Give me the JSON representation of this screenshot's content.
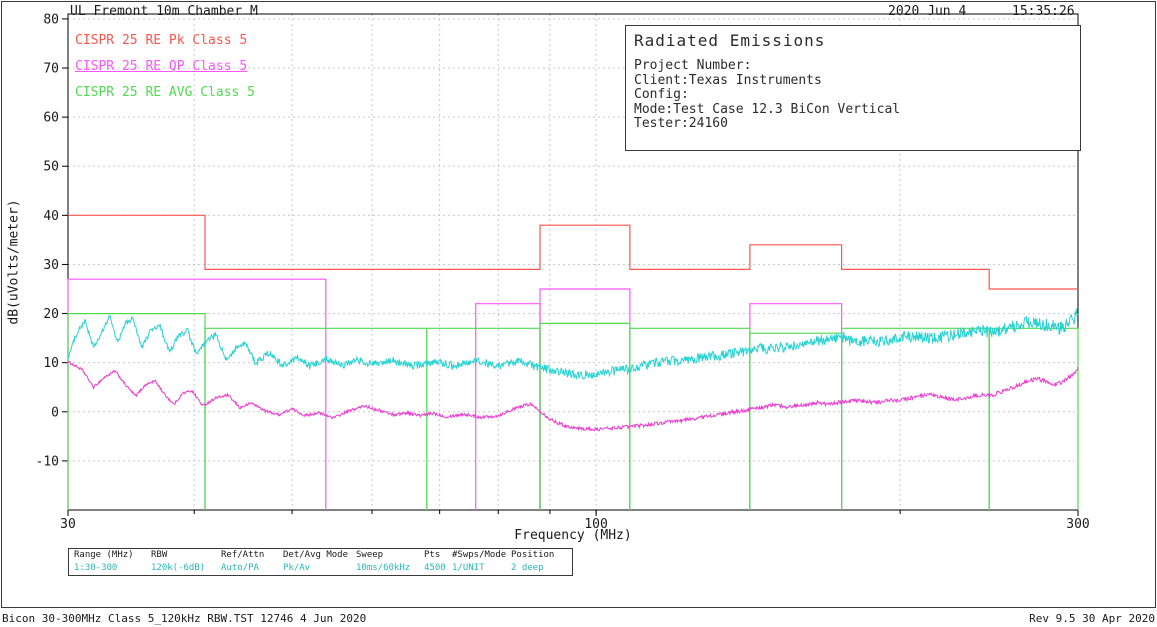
{
  "header": {
    "title": "UL Fremont 10m Chamber M",
    "date": "2020 Jun 4",
    "time": "15:35:26"
  },
  "legend": [
    {
      "label": "CISPR 25 RE Pk Class 5",
      "color": "#ff554d",
      "underline": false
    },
    {
      "label": "CISPR 25 RE QP Class 5",
      "color": "#ff55ff",
      "underline": true
    },
    {
      "label": "CISPR 25 RE AVG Class 5",
      "color": "#4fdc4f",
      "underline": false
    }
  ],
  "info_box": {
    "title": "Radiated Emissions",
    "lines": [
      "Project Number:",
      "Client:Texas Instruments",
      "Config:",
      "Mode:Test Case 12.3 BiCon Vertical",
      "Tester:24160"
    ]
  },
  "settings_table": {
    "columns": [
      {
        "header": "Range (MHz)",
        "value": "1:30-300"
      },
      {
        "header": "RBW",
        "value": "120k(-6dB)"
      },
      {
        "header": "Ref/Attn",
        "value": "Auto/PA"
      },
      {
        "header": "Det/Avg Mode",
        "value": "Pk/Av"
      },
      {
        "header": "Sweep",
        "value": "10ms/60kHz"
      },
      {
        "header": "Pts",
        "value": "4500"
      },
      {
        "header": "#Swps/Mode",
        "value": "1/UNIT"
      },
      {
        "header": "Position",
        "value": "2 deep"
      }
    ]
  },
  "footer": {
    "left": "Bicon 30-300MHz Class 5_120kHz RBW.TST 12746  4 Jun 2020",
    "right": "Rev 9.5 30 Apr 2020"
  },
  "chart_data": {
    "type": "line",
    "title": "Radiated Emissions",
    "xlabel": "Frequency (MHz)",
    "ylabel": "dB(uVolts/meter)",
    "xscale": "log",
    "xlim": [
      30,
      300
    ],
    "ylim": [
      -20,
      81
    ],
    "xticks_labeled": [
      30,
      100,
      300
    ],
    "xgrid": [
      40,
      50,
      60,
      70,
      80,
      90,
      100,
      200
    ],
    "yticks": [
      -10,
      0,
      10,
      20,
      30,
      40,
      50,
      60,
      70,
      80
    ],
    "grid_color": "#c9c9c9",
    "limits": [
      {
        "name": "CISPR 25 RE Pk Class 5",
        "color": "#ff554d",
        "style": "step",
        "points": [
          [
            30,
            40
          ],
          [
            41,
            40
          ],
          [
            41,
            29
          ],
          [
            88,
            29
          ],
          [
            88,
            38
          ],
          [
            108,
            38
          ],
          [
            108,
            29
          ],
          [
            142,
            29
          ],
          [
            142,
            34
          ],
          [
            175,
            34
          ],
          [
            175,
            29
          ],
          [
            245,
            29
          ],
          [
            245,
            25
          ],
          [
            300,
            25
          ]
        ]
      },
      {
        "name": "CISPR 25 RE QP Class 5",
        "color": "#ff55ff",
        "style": "bands",
        "bands": [
          [
            30,
            54,
            27
          ],
          [
            76,
            88,
            22
          ],
          [
            88,
            108,
            25
          ],
          [
            142,
            175,
            22
          ]
        ]
      },
      {
        "name": "CISPR 25 RE AVG Class 5",
        "color": "#4fdc4f",
        "style": "bands",
        "bands": [
          [
            30,
            41,
            20
          ],
          [
            41,
            68,
            17
          ],
          [
            68,
            88,
            17
          ],
          [
            88,
            108,
            18
          ],
          [
            108,
            142,
            17
          ],
          [
            142,
            175,
            16
          ],
          [
            175,
            245,
            17
          ],
          [
            245,
            300,
            17
          ]
        ]
      }
    ],
    "traces": [
      {
        "name": "magenta",
        "color": "#ee3bd0",
        "noise_db": 0.4,
        "noise_ramp": [
          0.6,
          0.5
        ],
        "points": [
          [
            30,
            10.2
          ],
          [
            31,
            8.5
          ],
          [
            31.8,
            5
          ],
          [
            32.6,
            7
          ],
          [
            33.4,
            8.3
          ],
          [
            34.2,
            5.5
          ],
          [
            35,
            3.2
          ],
          [
            35.8,
            5.5
          ],
          [
            36.6,
            6.3
          ],
          [
            37.4,
            3.5
          ],
          [
            38.2,
            1.5
          ],
          [
            39,
            3.8
          ],
          [
            39.8,
            4.3
          ],
          [
            40.8,
            1.2
          ],
          [
            42,
            2.8
          ],
          [
            43.2,
            3.4
          ],
          [
            44.4,
            0.8
          ],
          [
            45.6,
            1.8
          ],
          [
            47,
            0.2
          ],
          [
            48.5,
            -0.6
          ],
          [
            50,
            0.6
          ],
          [
            51.5,
            -0.8
          ],
          [
            53,
            -0.2
          ],
          [
            55,
            -1.2
          ],
          [
            57,
            0.2
          ],
          [
            59,
            1.2
          ],
          [
            61,
            0.3
          ],
          [
            63,
            -0.6
          ],
          [
            65,
            -0.2
          ],
          [
            67,
            -0.8
          ],
          [
            69,
            -0.3
          ],
          [
            71,
            -1.0
          ],
          [
            74,
            -0.5
          ],
          [
            77,
            -1.1
          ],
          [
            80,
            -0.8
          ],
          [
            82,
            0.2
          ],
          [
            84,
            1.0
          ],
          [
            86,
            1.6
          ],
          [
            88,
            0.2
          ],
          [
            90,
            -1.5
          ],
          [
            93,
            -2.8
          ],
          [
            96,
            -3.4
          ],
          [
            100,
            -3.6
          ],
          [
            104,
            -3.3
          ],
          [
            108,
            -3.0
          ],
          [
            112,
            -2.7
          ],
          [
            116,
            -2.3
          ],
          [
            120,
            -1.9
          ],
          [
            125,
            -1.4
          ],
          [
            130,
            -0.8
          ],
          [
            135,
            -0.3
          ],
          [
            140,
            0.3
          ],
          [
            145,
            0.8
          ],
          [
            150,
            1.4
          ],
          [
            155,
            1.0
          ],
          [
            160,
            1.4
          ],
          [
            165,
            1.9
          ],
          [
            170,
            1.5
          ],
          [
            175,
            2.0
          ],
          [
            180,
            2.4
          ],
          [
            185,
            2.0
          ],
          [
            190,
            1.9
          ],
          [
            195,
            2.3
          ],
          [
            200,
            2.4
          ],
          [
            205,
            2.8
          ],
          [
            210,
            3.2
          ],
          [
            215,
            3.4
          ],
          [
            220,
            2.9
          ],
          [
            225,
            2.5
          ],
          [
            230,
            2.6
          ],
          [
            235,
            3.0
          ],
          [
            240,
            3.4
          ],
          [
            245,
            3.3
          ],
          [
            250,
            3.8
          ],
          [
            255,
            4.4
          ],
          [
            260,
            5.2
          ],
          [
            265,
            5.9
          ],
          [
            270,
            6.5
          ],
          [
            275,
            6.6
          ],
          [
            280,
            6.1
          ],
          [
            285,
            5.6
          ],
          [
            290,
            6.1
          ],
          [
            295,
            7.3
          ],
          [
            300,
            8.8
          ]
        ]
      },
      {
        "name": "cyan",
        "color": "#29d3d3",
        "noise_db": 1.05,
        "noise_ramp": [
          0.45,
          0.85
        ],
        "points": [
          [
            30,
            11
          ],
          [
            30.6,
            16
          ],
          [
            31.2,
            18.5
          ],
          [
            31.8,
            13
          ],
          [
            32.4,
            16
          ],
          [
            33,
            19.5
          ],
          [
            33.6,
            14
          ],
          [
            34.2,
            18
          ],
          [
            34.8,
            19
          ],
          [
            35.5,
            13
          ],
          [
            36.2,
            16.5
          ],
          [
            37,
            17.5
          ],
          [
            37.8,
            12
          ],
          [
            38.6,
            15.5
          ],
          [
            39.4,
            16.5
          ],
          [
            40.2,
            11.5
          ],
          [
            41,
            14
          ],
          [
            42,
            15.8
          ],
          [
            43,
            10.5
          ],
          [
            44,
            13
          ],
          [
            45,
            13.8
          ],
          [
            46,
            10
          ],
          [
            47.5,
            12
          ],
          [
            49,
            9.3
          ],
          [
            50.5,
            11.2
          ],
          [
            52,
            9.2
          ],
          [
            54,
            10.8
          ],
          [
            56,
            9.4
          ],
          [
            58,
            10.6
          ],
          [
            60,
            9.6
          ],
          [
            63,
            10.4
          ],
          [
            66,
            9.3
          ],
          [
            69,
            10.2
          ],
          [
            72,
            9.5
          ],
          [
            76,
            10.3
          ],
          [
            80,
            9.4
          ],
          [
            84,
            10.2
          ],
          [
            88,
            9.0
          ],
          [
            92,
            8.2
          ],
          [
            96,
            7.4
          ],
          [
            100,
            7.8
          ],
          [
            104,
            8.3
          ],
          [
            108,
            8.8
          ],
          [
            112,
            9.6
          ],
          [
            116,
            10.1
          ],
          [
            120,
            10.4
          ],
          [
            125,
            10.8
          ],
          [
            130,
            11.2
          ],
          [
            135,
            11.8
          ],
          [
            140,
            12.3
          ],
          [
            145,
            12.8
          ],
          [
            150,
            12.9
          ],
          [
            155,
            13.3
          ],
          [
            160,
            13.8
          ],
          [
            165,
            14.3
          ],
          [
            170,
            14.9
          ],
          [
            175,
            15.3
          ],
          [
            178,
            14.6
          ],
          [
            182,
            14.2
          ],
          [
            186,
            14.5
          ],
          [
            190,
            14.3
          ],
          [
            195,
            14.8
          ],
          [
            200,
            15.1
          ],
          [
            205,
            15.4
          ],
          [
            210,
            15.2
          ],
          [
            215,
            15.0
          ],
          [
            220,
            15.3
          ],
          [
            225,
            15.7
          ],
          [
            230,
            16.0
          ],
          [
            235,
            16.2
          ],
          [
            240,
            16.4
          ],
          [
            245,
            16.3
          ],
          [
            250,
            16.6
          ],
          [
            255,
            17.0
          ],
          [
            260,
            17.5
          ],
          [
            265,
            18.0
          ],
          [
            270,
            18.3
          ],
          [
            275,
            18.0
          ],
          [
            280,
            17.6
          ],
          [
            285,
            17.2
          ],
          [
            288,
            17.0
          ],
          [
            292,
            17.6
          ],
          [
            296,
            18.6
          ],
          [
            300,
            20.3
          ]
        ]
      }
    ]
  }
}
